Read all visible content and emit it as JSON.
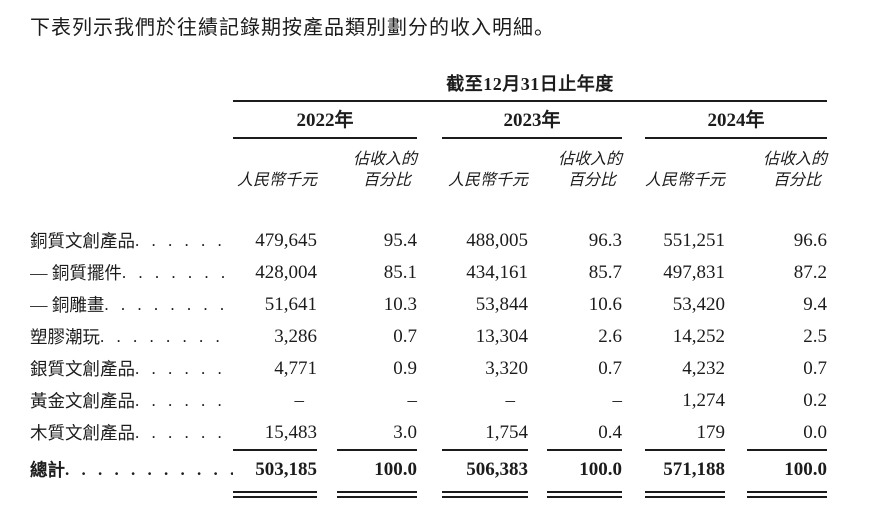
{
  "intro": "下表列示我們於往績記錄期按產品類別劃分的收入明細。",
  "table": {
    "period_header": "截至12月31日止年度",
    "year_groups": [
      {
        "year": "2022年",
        "amount_header": "人民幣千元",
        "pct_header_line1": "佔收入的",
        "pct_header_line2": "百分比"
      },
      {
        "year": "2023年",
        "amount_header": "人民幣千元",
        "pct_header_line1": "佔收入的",
        "pct_header_line2": "百分比"
      },
      {
        "year": "2024年",
        "amount_header": "人民幣千元",
        "pct_header_line1": "佔收入的",
        "pct_header_line2": "百分比"
      }
    ],
    "rows": [
      {
        "label": "銅質文創產品",
        "y2022_amount": "479,645",
        "y2022_pct": "95.4",
        "y2023_amount": "488,005",
        "y2023_pct": "96.3",
        "y2024_amount": "551,251",
        "y2024_pct": "96.6"
      },
      {
        "label": "— 銅質擺件",
        "y2022_amount": "428,004",
        "y2022_pct": "85.1",
        "y2023_amount": "434,161",
        "y2023_pct": "85.7",
        "y2024_amount": "497,831",
        "y2024_pct": "87.2"
      },
      {
        "label": "— 銅雕畫",
        "y2022_amount": "51,641",
        "y2022_pct": "10.3",
        "y2023_amount": "53,844",
        "y2023_pct": "10.6",
        "y2024_amount": "53,420",
        "y2024_pct": "9.4"
      },
      {
        "label": "塑膠潮玩",
        "y2022_amount": "3,286",
        "y2022_pct": "0.7",
        "y2023_amount": "13,304",
        "y2023_pct": "2.6",
        "y2024_amount": "14,252",
        "y2024_pct": "2.5"
      },
      {
        "label": "銀質文創產品",
        "y2022_amount": "4,771",
        "y2022_pct": "0.9",
        "y2023_amount": "3,320",
        "y2023_pct": "0.7",
        "y2024_amount": "4,232",
        "y2024_pct": "0.7"
      },
      {
        "label": "黃金文創產品",
        "y2022_amount": "–",
        "y2022_pct": "–",
        "y2023_amount": "–",
        "y2023_pct": "–",
        "y2024_amount": "1,274",
        "y2024_pct": "0.2"
      },
      {
        "label": "木質文創產品",
        "y2022_amount": "15,483",
        "y2022_pct": "3.0",
        "y2023_amount": "1,754",
        "y2023_pct": "0.4",
        "y2024_amount": "179",
        "y2024_pct": "0.0"
      }
    ],
    "total": {
      "label": "總計",
      "y2022_amount": "503,185",
      "y2022_pct": "100.0",
      "y2023_amount": "506,383",
      "y2023_pct": "100.0",
      "y2024_amount": "571,188",
      "y2024_pct": "100.0"
    }
  }
}
